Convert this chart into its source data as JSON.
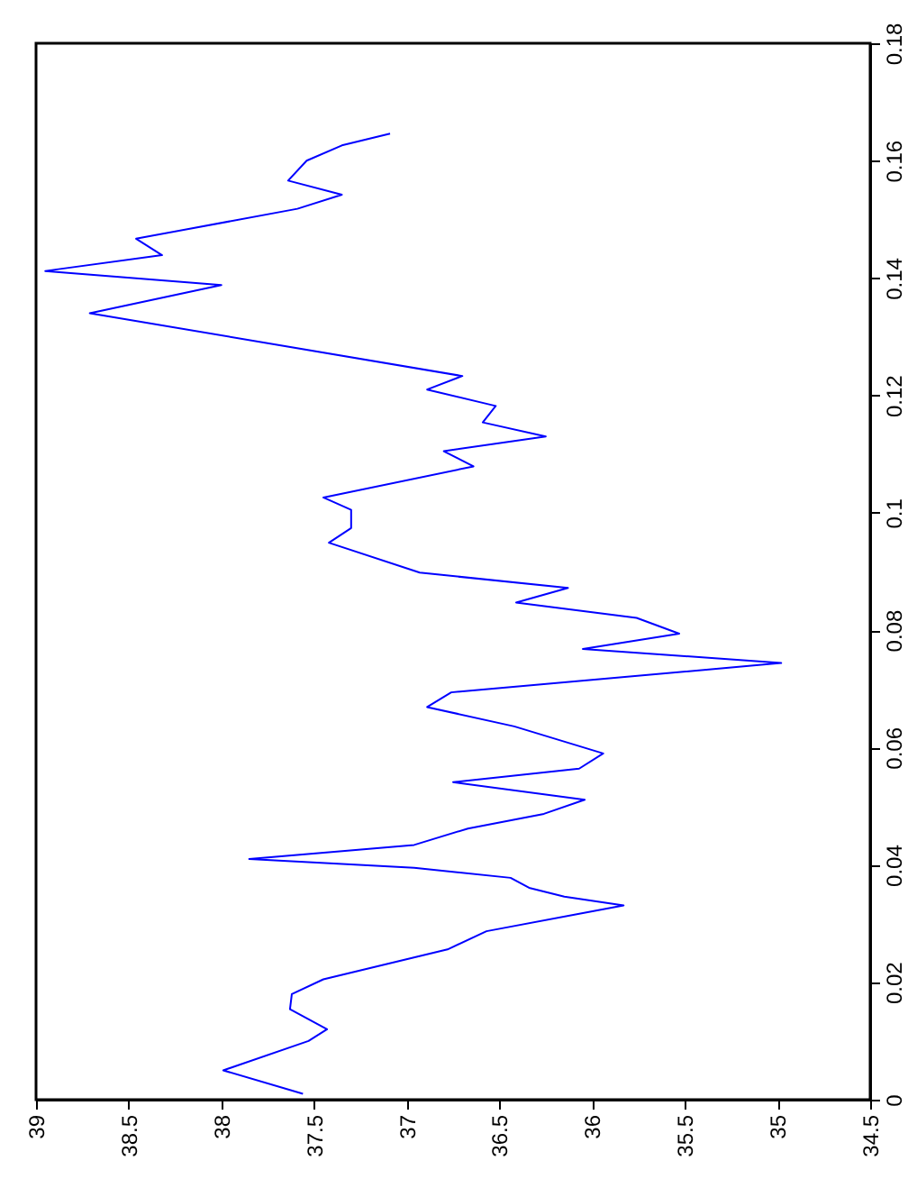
{
  "chart_data": {
    "type": "line",
    "color": "#0000ff",
    "line_style": "solid",
    "marker": "none",
    "grid": false,
    "values": [
      0.001,
      0.005,
      0.01,
      0.012,
      0.0154,
      0.018,
      0.0205,
      0.0256,
      0.0287,
      0.0331,
      0.0346,
      0.0361,
      0.0378,
      0.0395,
      0.041,
      0.0434,
      0.0462,
      0.0487,
      0.0511,
      0.0541,
      0.0564,
      0.059,
      0.0636,
      0.0669,
      0.0694,
      0.0744,
      0.0768,
      0.0794,
      0.0821,
      0.0847,
      0.0872,
      0.0898,
      0.0949,
      0.0974,
      0.1005,
      0.1026,
      0.1079,
      0.1105,
      0.113,
      0.1154,
      0.1182,
      0.121,
      0.1233,
      0.134,
      0.1388,
      0.1412,
      0.1439,
      0.1467,
      0.1518,
      0.1542,
      0.1566,
      0.16,
      0.1626,
      0.1646
    ],
    "x": [
      37.56,
      37.99,
      37.53,
      37.43,
      37.63,
      37.62,
      37.45,
      36.78,
      36.57,
      35.83,
      36.15,
      36.34,
      36.44,
      36.96,
      37.85,
      36.96,
      36.67,
      36.26,
      36.04,
      36.75,
      36.07,
      35.94,
      36.42,
      36.89,
      36.76,
      34.98,
      36.05,
      35.53,
      35.76,
      36.41,
      36.13,
      36.93,
      37.42,
      37.3,
      37.3,
      37.45,
      36.64,
      36.8,
      36.25,
      36.59,
      36.52,
      36.89,
      36.7,
      38.71,
      38.0,
      38.95,
      38.32,
      38.46,
      37.59,
      37.35,
      37.64,
      37.54,
      37.35,
      37.09
    ],
    "ylim": [
      0,
      0.18
    ],
    "yticks": [
      0,
      0.02,
      0.04,
      0.06,
      0.08,
      0.1,
      0.12,
      0.14,
      0.16,
      0.18
    ],
    "xlim": [
      39,
      34.5
    ],
    "xticks": [
      39,
      38.5,
      38,
      37.5,
      37,
      36.5,
      36,
      35.5,
      35,
      34.5
    ]
  }
}
